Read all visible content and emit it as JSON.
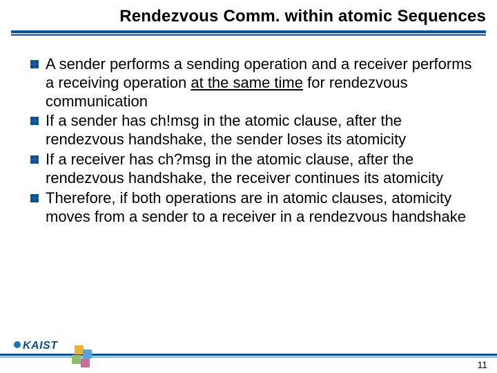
{
  "title": "Rendezvous Comm. within atomic Sequences",
  "bullets": {
    "b1": {
      "pre": "A sender performs a sending operation and a receiver performs a receiving operation ",
      "u": "at the same time",
      "post": " for rendezvous communication"
    },
    "b2": "If a sender has ch!msg in the atomic clause, after the rendezvous handshake, the sender loses its atomicity",
    "b3": "If a receiver has ch?msg in the atomic clause, after the rendezvous handshake, the receiver continues its atomicity",
    "b4": "Therefore, if both operations are in atomic clauses, atomicity moves from a sender to a receiver in a rendezvous handshake"
  },
  "footer": {
    "logo_text": "KAIST",
    "page_number": "11"
  },
  "colors": {
    "title_bar_dark": "#0a4f8f",
    "title_bar_light": "#3b7fb8",
    "footer_bar_dark": "#0a4f8f",
    "footer_bar_light": "#7db3dc",
    "bullet": "#0a4f8f",
    "kaist": "#0a4f8f",
    "sq_yellow": "#e8b13a",
    "sq_blue": "#5aa3d8",
    "sq_green": "#8fc070",
    "sq_pink": "#c86f9c"
  }
}
